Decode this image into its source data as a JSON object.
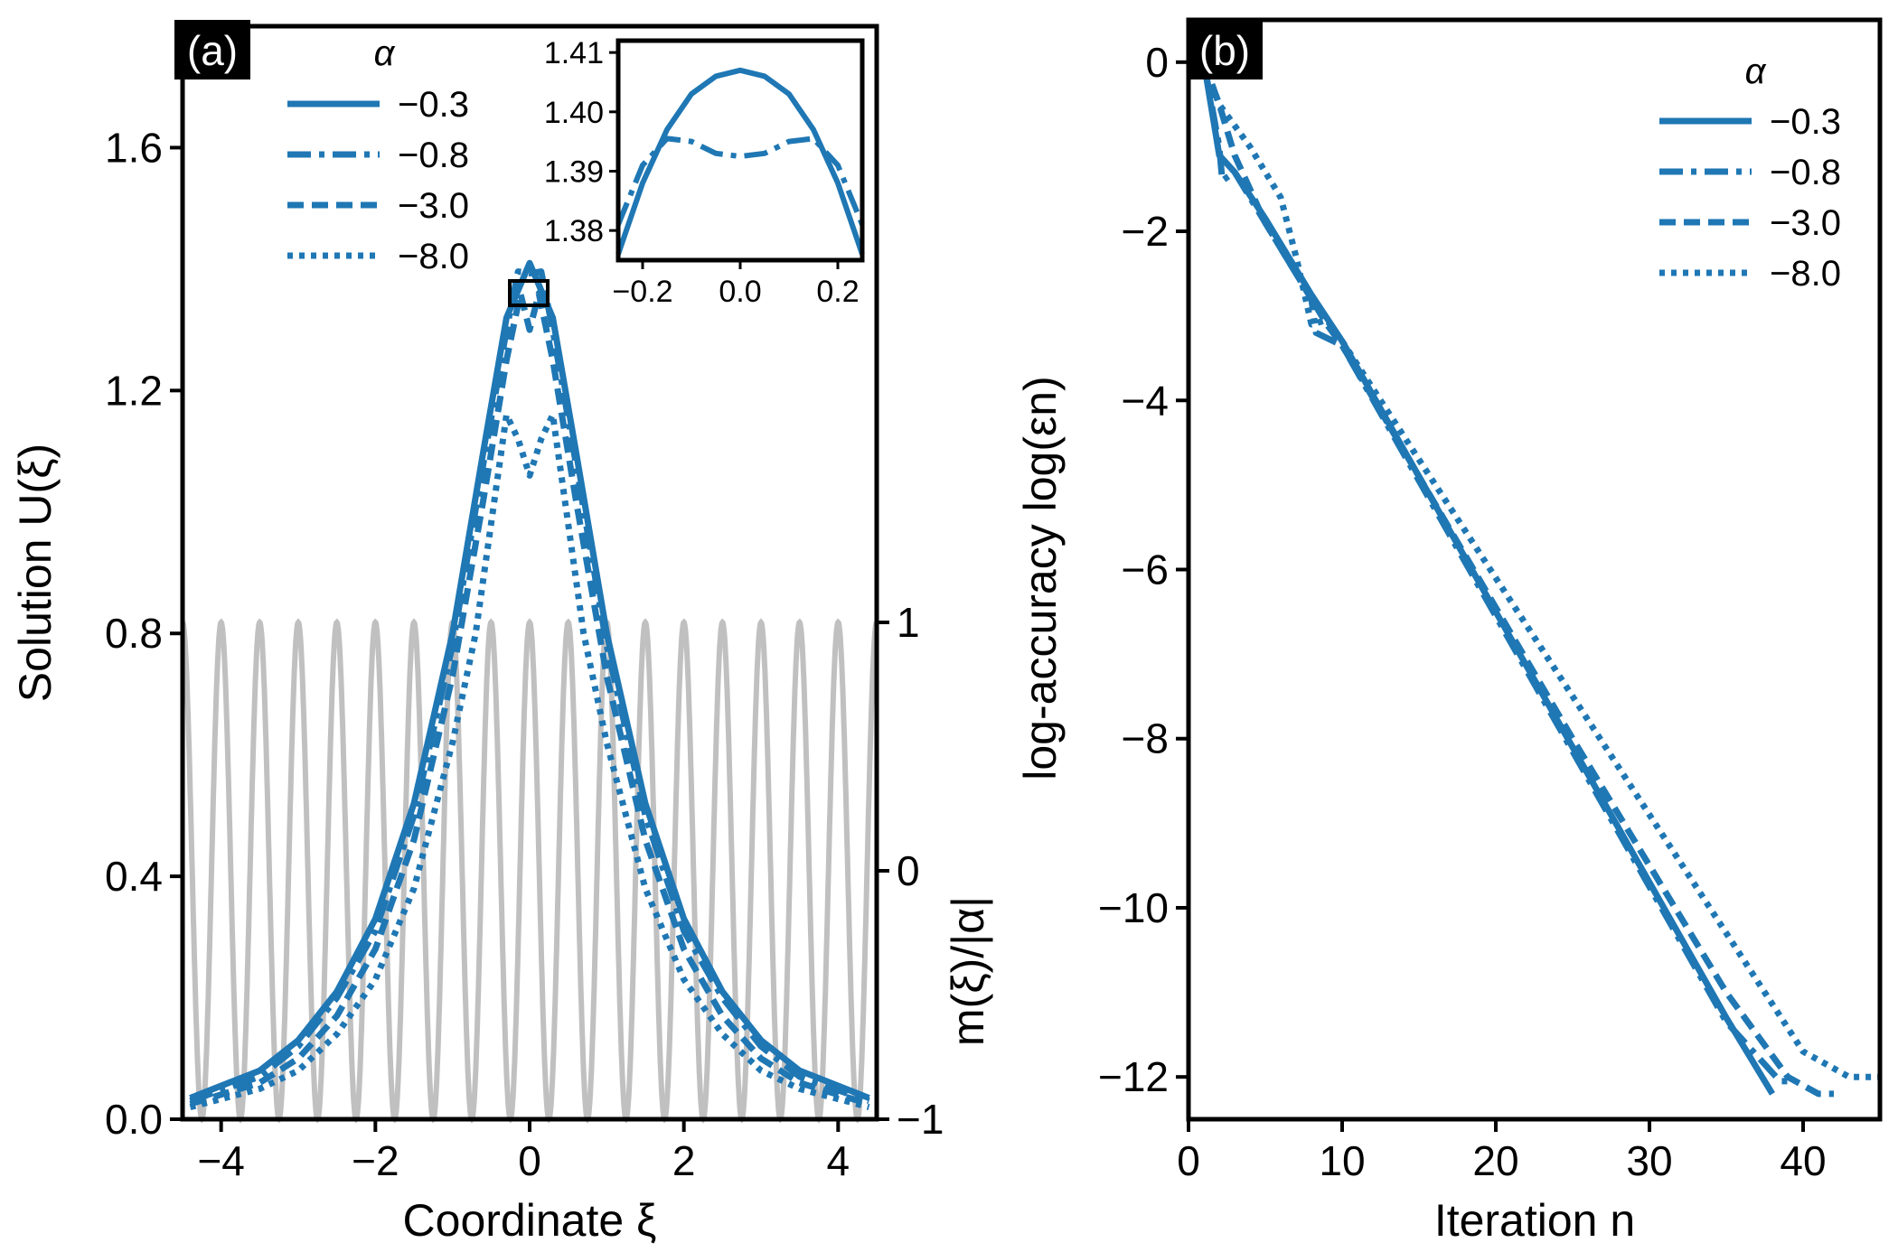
{
  "colors": {
    "series": "#1f77b4",
    "modulation": "#c0c0c0",
    "axis": "#000000",
    "tag_bg": "#000000",
    "tag_text": "#ffffff"
  },
  "chart_data": [
    {
      "panel": "(a)",
      "type": "line",
      "xlabel": "Coordinate ξ",
      "ylabel": "Solution U(ξ)",
      "y2label": "m(ξ)/|α|",
      "xlim": [
        -4.5,
        4.5
      ],
      "ylim": [
        0.0,
        1.8
      ],
      "y2lim": [
        -1,
        3.4
      ],
      "xticks": [
        -4,
        -2,
        0,
        2,
        4
      ],
      "xtick_labels": [
        "−4",
        "−2",
        "0",
        "2",
        "4"
      ],
      "yticks": [
        0.0,
        0.4,
        0.8,
        1.2,
        1.6
      ],
      "ytick_labels": [
        "0.0",
        "0.4",
        "0.8",
        "1.2",
        "1.6"
      ],
      "y2ticks": [
        -1,
        0,
        1
      ],
      "y2tick_labels": [
        "−1",
        "0",
        "1"
      ],
      "legend_title": "α",
      "legend_position": "top-left",
      "series": [
        {
          "name": "−0.3",
          "alpha": -0.3,
          "style": "solid",
          "x": [
            -4.4,
            -3.5,
            -3.0,
            -2.5,
            -2.0,
            -1.5,
            -1.0,
            -0.6,
            -0.3,
            0.0,
            0.3,
            0.6,
            1.0,
            1.5,
            2.0,
            2.5,
            3.0,
            3.5,
            4.4
          ],
          "values": [
            0.035,
            0.08,
            0.13,
            0.21,
            0.33,
            0.52,
            0.8,
            1.1,
            1.32,
            1.41,
            1.32,
            1.1,
            0.8,
            0.52,
            0.33,
            0.21,
            0.13,
            0.08,
            0.035
          ]
        },
        {
          "name": "−0.8",
          "alpha": -0.8,
          "style": "dashdot",
          "x": [
            -4.4,
            -3.5,
            -3.0,
            -2.5,
            -2.0,
            -1.5,
            -1.0,
            -0.6,
            -0.3,
            -0.15,
            0.0,
            0.15,
            0.3,
            0.6,
            1.0,
            1.5,
            2.0,
            2.5,
            3.0,
            3.5,
            4.4
          ],
          "values": [
            0.03,
            0.07,
            0.12,
            0.2,
            0.31,
            0.5,
            0.78,
            1.08,
            1.3,
            1.396,
            1.393,
            1.396,
            1.3,
            1.08,
            0.78,
            0.5,
            0.31,
            0.2,
            0.12,
            0.07,
            0.03
          ]
        },
        {
          "name": "−3.0",
          "alpha": -3.0,
          "style": "dashed",
          "x": [
            -4.4,
            -3.5,
            -3.0,
            -2.5,
            -2.0,
            -1.5,
            -1.0,
            -0.6,
            -0.3,
            -0.12,
            0.0,
            0.12,
            0.3,
            0.6,
            1.0,
            1.5,
            2.0,
            2.5,
            3.0,
            3.5,
            4.4
          ],
          "values": [
            0.025,
            0.06,
            0.1,
            0.17,
            0.28,
            0.46,
            0.73,
            1.02,
            1.25,
            1.36,
            1.3,
            1.36,
            1.25,
            1.02,
            0.73,
            0.46,
            0.28,
            0.17,
            0.1,
            0.06,
            0.025
          ]
        },
        {
          "name": "−8.0",
          "alpha": -8.0,
          "style": "dotted",
          "x": [
            -4.4,
            -3.5,
            -3.0,
            -2.5,
            -2.0,
            -1.5,
            -1.0,
            -0.7,
            -0.5,
            -0.3,
            -0.15,
            0.0,
            0.15,
            0.3,
            0.5,
            0.7,
            1.0,
            1.5,
            2.0,
            2.5,
            3.0,
            3.5,
            4.4
          ],
          "values": [
            0.02,
            0.05,
            0.08,
            0.14,
            0.23,
            0.38,
            0.62,
            0.8,
            0.98,
            1.16,
            1.12,
            1.06,
            1.12,
            1.16,
            0.98,
            0.8,
            0.62,
            0.38,
            0.23,
            0.14,
            0.08,
            0.05,
            0.02
          ]
        },
        {
          "name": "m(ξ)/|α|",
          "style": "solid-gray",
          "axis": "y2",
          "function": "cos(2πξ/0.5)",
          "period": 0.5,
          "amplitude": 1
        }
      ]
    },
    {
      "panel": "(a) inset",
      "type": "line",
      "xlim": [
        -0.25,
        0.25
      ],
      "ylim": [
        1.375,
        1.412
      ],
      "xticks": [
        -0.2,
        0.0,
        0.2
      ],
      "xtick_labels": [
        "−0.2",
        "0.0",
        "0.2"
      ],
      "yticks": [
        1.38,
        1.39,
        1.4,
        1.41
      ],
      "ytick_labels": [
        "1.38",
        "1.39",
        "1.40",
        "1.41"
      ],
      "series": [
        {
          "name": "−0.3",
          "style": "solid",
          "x": [
            -0.25,
            -0.2,
            -0.15,
            -0.1,
            -0.05,
            0.0,
            0.05,
            0.1,
            0.15,
            0.2,
            0.25
          ],
          "values": [
            1.376,
            1.388,
            1.397,
            1.403,
            1.406,
            1.407,
            1.406,
            1.403,
            1.397,
            1.388,
            1.376
          ]
        },
        {
          "name": "−0.8",
          "style": "dashdot",
          "x": [
            -0.25,
            -0.2,
            -0.15,
            -0.1,
            -0.05,
            0.0,
            0.05,
            0.1,
            0.15,
            0.2,
            0.25
          ],
          "values": [
            1.381,
            1.391,
            1.3955,
            1.395,
            1.393,
            1.3925,
            1.393,
            1.395,
            1.3955,
            1.391,
            1.381
          ]
        }
      ]
    },
    {
      "panel": "(b)",
      "type": "line",
      "xlabel": "Iteration n",
      "ylabel": "log-accuracy log(εn)",
      "xlim": [
        0,
        45
      ],
      "ylim": [
        -12.5,
        0.5
      ],
      "xticks": [
        0,
        10,
        20,
        30,
        40
      ],
      "xtick_labels": [
        "0",
        "10",
        "20",
        "30",
        "40"
      ],
      "yticks": [
        0,
        -2,
        -4,
        -6,
        -8,
        -10,
        -12
      ],
      "ytick_labels": [
        "0",
        "−2",
        "−4",
        "−6",
        "−8",
        "−10",
        "−12"
      ],
      "legend_title": "α",
      "legend_position": "top-right",
      "series": [
        {
          "name": "−0.3",
          "style": "solid",
          "x": [
            1,
            2,
            3,
            5,
            8,
            10,
            15,
            20,
            25,
            30,
            35,
            38
          ],
          "values": [
            0,
            -1.1,
            -1.3,
            -1.85,
            -2.75,
            -3.3,
            -4.9,
            -6.5,
            -8.1,
            -9.7,
            -11.3,
            -12.2
          ]
        },
        {
          "name": "−0.8",
          "style": "dashdot",
          "x": [
            1,
            2,
            2.2,
            3,
            5,
            8,
            8.3,
            10,
            15,
            20,
            25,
            30,
            35,
            38.5,
            39
          ],
          "values": [
            0,
            -1.0,
            -1.4,
            -1.3,
            -1.9,
            -2.8,
            -3.2,
            -3.35,
            -4.95,
            -6.55,
            -8.15,
            -9.75,
            -11.35,
            -12.05,
            -12.05
          ]
        },
        {
          "name": "−3.0",
          "style": "dashed",
          "x": [
            1,
            2,
            3,
            5,
            8,
            9,
            10,
            15,
            20,
            25,
            30,
            35,
            39,
            41,
            42
          ],
          "values": [
            0,
            -0.5,
            -1.1,
            -1.9,
            -2.8,
            -3.1,
            -3.35,
            -4.9,
            -6.45,
            -8.0,
            -9.5,
            -11.0,
            -12.0,
            -12.2,
            -12.2
          ]
        },
        {
          "name": "−8.0",
          "style": "dotted",
          "x": [
            1,
            2,
            4,
            6,
            7,
            8,
            9,
            10,
            15,
            20,
            25,
            30,
            35,
            40,
            43,
            44,
            45
          ],
          "values": [
            0,
            -0.5,
            -1.0,
            -1.6,
            -2.3,
            -3.1,
            -3.05,
            -3.3,
            -4.7,
            -6.1,
            -7.5,
            -8.9,
            -10.3,
            -11.7,
            -12.0,
            -12.0,
            -12.0
          ]
        }
      ]
    }
  ]
}
